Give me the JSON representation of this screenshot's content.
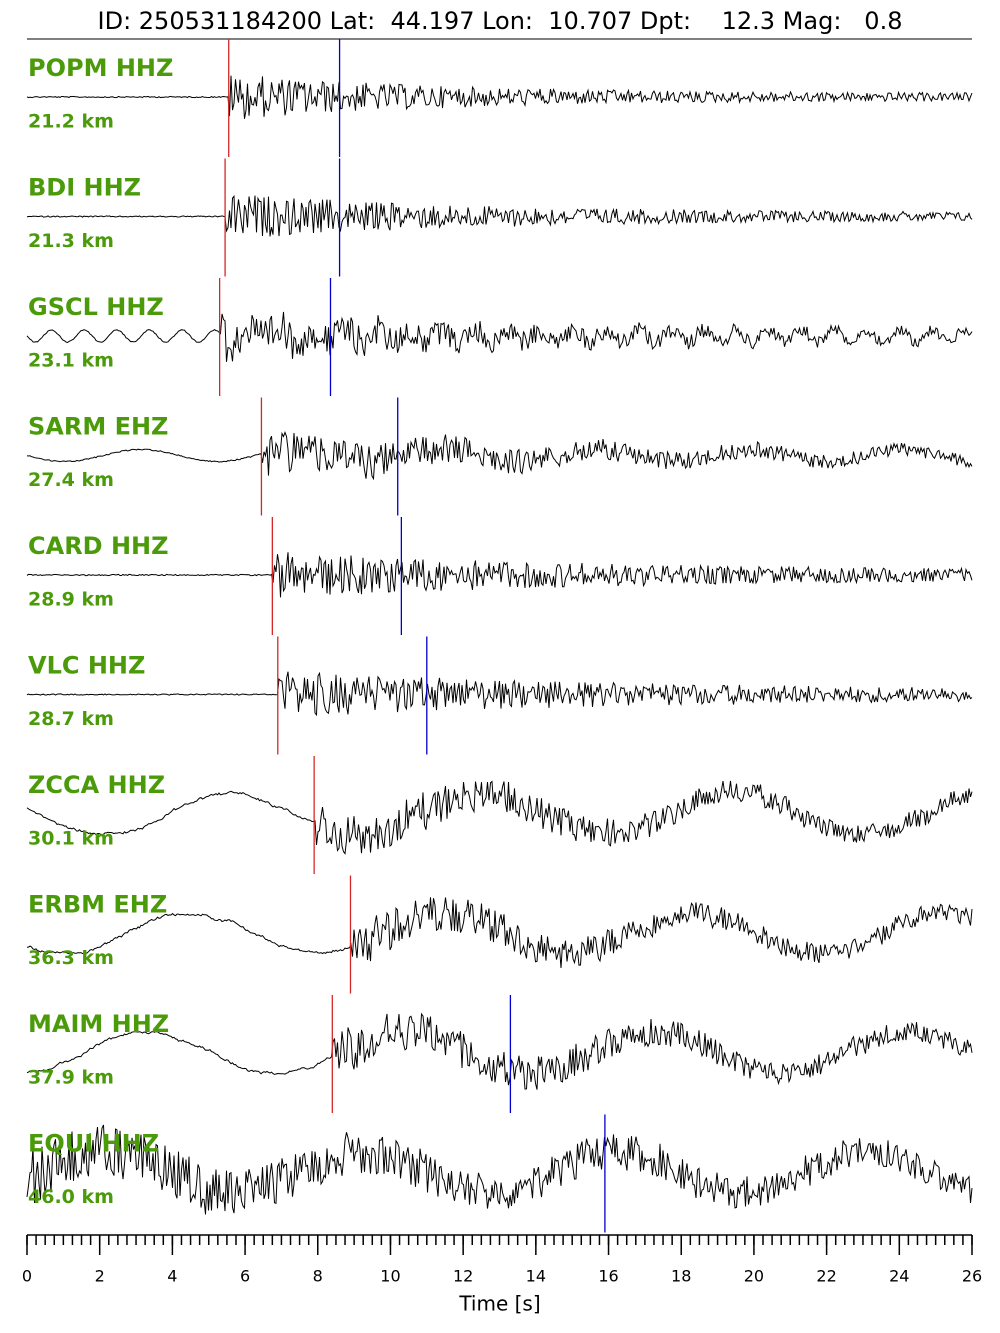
{
  "chart_data": {
    "type": "seismogram",
    "title": "ID: 250531184200 Lat:  44.197 Lon:  10.707 Dpt:    12.3 Mag:   0.8",
    "xlabel": "Time [s]",
    "xlim": [
      0,
      26
    ],
    "xticks": [
      0,
      2,
      4,
      6,
      8,
      10,
      12,
      14,
      16,
      18,
      20,
      22,
      24,
      26
    ],
    "xminor_step": 0.25,
    "p_color": "#d62728",
    "s_color": "#0000cc",
    "name_color": "#4a9a0a",
    "stations": [
      {
        "name": "POPM HHZ",
        "distance": "21.2 km",
        "p_pick": 5.55,
        "s_pick": 8.6
      },
      {
        "name": "BDI HHZ",
        "distance": "21.3 km",
        "p_pick": 5.45,
        "s_pick": 8.6
      },
      {
        "name": "GSCL HHZ",
        "distance": "23.1 km",
        "p_pick": 5.3,
        "s_pick": 8.35
      },
      {
        "name": "SARM EHZ",
        "distance": "27.4 km",
        "p_pick": 6.45,
        "s_pick": 10.2
      },
      {
        "name": "CARD HHZ",
        "distance": "28.9 km",
        "p_pick": 6.75,
        "s_pick": 10.3
      },
      {
        "name": "VLC HHZ",
        "distance": "28.7 km",
        "p_pick": 6.9,
        "s_pick": 11.0
      },
      {
        "name": "ZCCA HHZ",
        "distance": "30.1 km",
        "p_pick": 7.9,
        "s_pick": null
      },
      {
        "name": "ERBM EHZ",
        "distance": "36.3 km",
        "p_pick": 8.9,
        "s_pick": null
      },
      {
        "name": "MAIM HHZ",
        "distance": "37.9 km",
        "p_pick": 8.4,
        "s_pick": 13.3
      },
      {
        "name": "EQUI HHZ",
        "distance": "46.0 km",
        "p_pick": null,
        "s_pick": 15.9
      }
    ]
  }
}
